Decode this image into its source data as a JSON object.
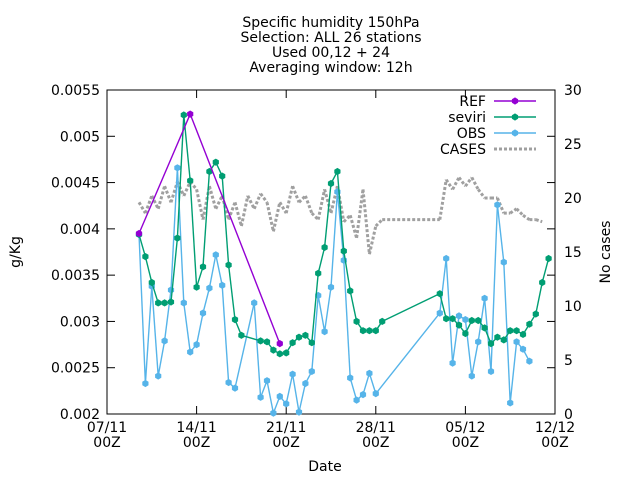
{
  "chart_data": {
    "type": "line",
    "title_lines": [
      "Specific humidity 150hPa",
      "Selection: ALL      26 stations",
      "Used 00,12 + 24",
      "Averaging window: 12h"
    ],
    "xlabel": "Date",
    "ylabel": "g/Kg",
    "y2label": "No cases",
    "xlim": [
      "2011-11-07T00",
      "2011-12-12T00"
    ],
    "ylim": [
      0.002,
      0.0055
    ],
    "y2lim": [
      0,
      30
    ],
    "x_ticks": [
      {
        "date": "2011-11-07T00",
        "line1": "07/11",
        "line2": "00Z"
      },
      {
        "date": "2011-11-14T00",
        "line1": "14/11",
        "line2": "00Z"
      },
      {
        "date": "2011-11-21T00",
        "line1": "21/11",
        "line2": "00Z"
      },
      {
        "date": "2011-11-28T00",
        "line1": "28/11",
        "line2": "00Z"
      },
      {
        "date": "2011-12-05T00",
        "line1": "05/12",
        "line2": "00Z"
      },
      {
        "date": "2011-12-12T00",
        "line1": "12/12",
        "line2": "00Z"
      }
    ],
    "y_ticks": [
      "0.002",
      "0.0025",
      "0.003",
      "0.0035",
      "0.004",
      "0.0045",
      "0.005",
      "0.0055"
    ],
    "y2_ticks": [
      "0",
      "5",
      "10",
      "15",
      "20",
      "25",
      "30"
    ],
    "legend_position": "top-right",
    "colors": {
      "REF": "#9400d3",
      "seviri": "#009e73",
      "OBS": "#56b4e9",
      "CASES": "#a0a0a0"
    },
    "series": [
      {
        "name": "REF",
        "axis": "y1",
        "style": "line-points",
        "points": [
          [
            "2011-11-09T12",
            0.00395
          ],
          [
            "2011-11-13T12",
            0.00524
          ],
          [
            "2011-11-20T12",
            0.00276
          ]
        ]
      },
      {
        "name": "seviri",
        "axis": "y1",
        "style": "line-points",
        "points": [
          [
            "2011-11-09T12",
            0.00394
          ],
          [
            "2011-11-10T00",
            0.0037
          ],
          [
            "2011-11-10T12",
            0.00342
          ],
          [
            "2011-11-11T00",
            0.0032
          ],
          [
            "2011-11-11T12",
            0.0032
          ],
          [
            "2011-11-12T00",
            0.00321
          ],
          [
            "2011-11-12T12",
            0.0039
          ],
          [
            "2011-11-13T00",
            0.00523
          ],
          [
            "2011-11-13T12",
            0.00452
          ],
          [
            "2011-11-14T00",
            0.00337
          ],
          [
            "2011-11-14T12",
            0.00359
          ],
          [
            "2011-11-15T00",
            0.00462
          ],
          [
            "2011-11-15T12",
            0.00472
          ],
          [
            "2011-11-16T00",
            0.00457
          ],
          [
            "2011-11-16T12",
            0.00361
          ],
          [
            "2011-11-17T00",
            0.00302
          ],
          [
            "2011-11-17T12",
            0.00285
          ],
          [
            "2011-11-19T00",
            0.00279
          ],
          [
            "2011-11-19T12",
            0.00278
          ],
          [
            "2011-11-20T00",
            0.00269
          ],
          [
            "2011-11-20T12",
            0.00265
          ],
          [
            "2011-11-21T00",
            0.00266
          ],
          [
            "2011-11-21T12",
            0.00277
          ],
          [
            "2011-11-22T00",
            0.00283
          ],
          [
            "2011-11-22T12",
            0.00285
          ],
          [
            "2011-11-23T00",
            0.00277
          ],
          [
            "2011-11-23T12",
            0.00352
          ],
          [
            "2011-11-24T00",
            0.0038
          ],
          [
            "2011-11-24T12",
            0.00449
          ],
          [
            "2011-11-25T00",
            0.00462
          ],
          [
            "2011-11-25T12",
            0.00376
          ],
          [
            "2011-11-26T00",
            0.00333
          ],
          [
            "2011-11-26T12",
            0.003
          ],
          [
            "2011-11-27T00",
            0.0029
          ],
          [
            "2011-11-27T12",
            0.0029
          ],
          [
            "2011-11-28T00",
            0.0029
          ],
          [
            "2011-11-28T12",
            0.003
          ],
          [
            "2011-12-03T00",
            0.0033
          ],
          [
            "2011-12-03T12",
            0.00303
          ],
          [
            "2011-12-04T00",
            0.00303
          ],
          [
            "2011-12-04T12",
            0.00296
          ],
          [
            "2011-12-05T00",
            0.00287
          ],
          [
            "2011-12-05T12",
            0.00301
          ],
          [
            "2011-12-06T00",
            0.00301
          ],
          [
            "2011-12-06T12",
            0.00293
          ],
          [
            "2011-12-07T00",
            0.00276
          ],
          [
            "2011-12-07T12",
            0.00283
          ],
          [
            "2011-12-08T00",
            0.0028
          ],
          [
            "2011-12-08T12",
            0.0029
          ],
          [
            "2011-12-09T00",
            0.0029
          ],
          [
            "2011-12-09T12",
            0.00286
          ],
          [
            "2011-12-10T00",
            0.00297
          ],
          [
            "2011-12-10T12",
            0.00308
          ],
          [
            "2011-12-11T00",
            0.00342
          ],
          [
            "2011-12-11T12",
            0.00368
          ]
        ]
      },
      {
        "name": "OBS",
        "axis": "y1",
        "style": "line-points",
        "points": [
          [
            "2011-11-09T12",
            0.00394
          ],
          [
            "2011-11-10T00",
            0.00233
          ],
          [
            "2011-11-10T12",
            0.00338
          ],
          [
            "2011-11-11T00",
            0.00241
          ],
          [
            "2011-11-11T12",
            0.00279
          ],
          [
            "2011-11-12T00",
            0.00334
          ],
          [
            "2011-11-12T12",
            0.00466
          ],
          [
            "2011-11-13T00",
            0.0032
          ],
          [
            "2011-11-13T12",
            0.00267
          ],
          [
            "2011-11-14T00",
            0.00275
          ],
          [
            "2011-11-14T12",
            0.00309
          ],
          [
            "2011-11-15T00",
            0.00336
          ],
          [
            "2011-11-15T12",
            0.00372
          ],
          [
            "2011-11-16T00",
            0.00339
          ],
          [
            "2011-11-16T12",
            0.00234
          ],
          [
            "2011-11-17T00",
            0.00228
          ],
          [
            "2011-11-18T12",
            0.0032
          ],
          [
            "2011-11-19T00",
            0.00218
          ],
          [
            "2011-11-19T12",
            0.00236
          ],
          [
            "2011-11-20T00",
            0.00201
          ],
          [
            "2011-11-20T12",
            0.00219
          ],
          [
            "2011-11-21T00",
            0.00211
          ],
          [
            "2011-11-21T12",
            0.00243
          ],
          [
            "2011-11-22T00",
            0.00202
          ],
          [
            "2011-11-22T12",
            0.00233
          ],
          [
            "2011-11-23T00",
            0.00246
          ],
          [
            "2011-11-23T12",
            0.00328
          ],
          [
            "2011-11-24T00",
            0.00289
          ],
          [
            "2011-11-24T12",
            0.00337
          ],
          [
            "2011-11-25T00",
            0.0044
          ],
          [
            "2011-11-25T12",
            0.00366
          ],
          [
            "2011-11-26T00",
            0.00239
          ],
          [
            "2011-11-26T12",
            0.00215
          ],
          [
            "2011-11-27T00",
            0.00221
          ],
          [
            "2011-11-27T12",
            0.00244
          ],
          [
            "2011-11-28T00",
            0.00222
          ],
          [
            "2011-12-03T00",
            0.00309
          ],
          [
            "2011-12-03T12",
            0.00368
          ],
          [
            "2011-12-04T00",
            0.00255
          ],
          [
            "2011-12-04T12",
            0.00306
          ],
          [
            "2011-12-05T00",
            0.00302
          ],
          [
            "2011-12-05T12",
            0.00241
          ],
          [
            "2011-12-06T00",
            0.00278
          ],
          [
            "2011-12-06T12",
            0.00325
          ],
          [
            "2011-12-07T00",
            0.00246
          ],
          [
            "2011-12-07T12",
            0.00426
          ],
          [
            "2011-12-08T00",
            0.00364
          ],
          [
            "2011-12-08T12",
            0.00212
          ],
          [
            "2011-12-09T00",
            0.00278
          ],
          [
            "2011-12-09T12",
            0.0027
          ],
          [
            "2011-12-10T00",
            0.00257
          ]
        ]
      },
      {
        "name": "CASES",
        "axis": "y2",
        "style": "dashed-line",
        "points": [
          [
            "2011-11-09T12",
            19.6
          ],
          [
            "2011-11-10T00",
            18.6
          ],
          [
            "2011-11-10T12",
            20.2
          ],
          [
            "2011-11-11T00",
            19.0
          ],
          [
            "2011-11-11T12",
            21.1
          ],
          [
            "2011-11-12T00",
            19.6
          ],
          [
            "2011-11-12T12",
            21.5
          ],
          [
            "2011-11-13T00",
            20.2
          ],
          [
            "2011-11-13T12",
            21.5
          ],
          [
            "2011-11-14T00",
            20.8
          ],
          [
            "2011-11-14T12",
            18.0
          ],
          [
            "2011-11-15T00",
            21.1
          ],
          [
            "2011-11-15T12",
            19.0
          ],
          [
            "2011-11-16T00",
            20.2
          ],
          [
            "2011-11-16T12",
            18.0
          ],
          [
            "2011-11-17T00",
            19.6
          ],
          [
            "2011-11-17T12",
            17.4
          ],
          [
            "2011-11-18T00",
            20.2
          ],
          [
            "2011-11-18T12",
            19.0
          ],
          [
            "2011-11-19T00",
            20.4
          ],
          [
            "2011-11-19T12",
            19.6
          ],
          [
            "2011-11-20T00",
            16.9
          ],
          [
            "2011-11-20T12",
            19.6
          ],
          [
            "2011-11-21T00",
            18.6
          ],
          [
            "2011-11-21T12",
            21.1
          ],
          [
            "2011-11-22T00",
            19.6
          ],
          [
            "2011-11-22T12",
            20.2
          ],
          [
            "2011-11-23T00",
            18.6
          ],
          [
            "2011-11-23T12",
            18.0
          ],
          [
            "2011-11-24T00",
            20.8
          ],
          [
            "2011-11-24T12",
            18.6
          ],
          [
            "2011-11-25T00",
            21.1
          ],
          [
            "2011-11-25T12",
            17.8
          ],
          [
            "2011-11-26T00",
            18.4
          ],
          [
            "2011-11-26T12",
            16.3
          ],
          [
            "2011-11-27T00",
            20.8
          ],
          [
            "2011-11-27T12",
            14.8
          ],
          [
            "2011-11-28T00",
            17.4
          ],
          [
            "2011-11-28T12",
            18.0
          ],
          [
            "2011-12-03T00",
            18.0
          ],
          [
            "2011-12-03T12",
            21.7
          ],
          [
            "2011-12-04T00",
            20.8
          ],
          [
            "2011-12-04T12",
            21.9
          ],
          [
            "2011-12-05T00",
            21.1
          ],
          [
            "2011-12-05T12",
            21.9
          ],
          [
            "2011-12-06T00",
            20.8
          ],
          [
            "2011-12-06T12",
            20.0
          ],
          [
            "2011-12-07T00",
            20.0
          ],
          [
            "2011-12-07T12",
            20.0
          ],
          [
            "2011-12-08T00",
            18.6
          ],
          [
            "2011-12-08T12",
            18.6
          ],
          [
            "2011-12-09T00",
            19.0
          ],
          [
            "2011-12-09T12",
            18.4
          ],
          [
            "2011-12-10T00",
            18.0
          ],
          [
            "2011-12-10T12",
            18.0
          ],
          [
            "2011-12-11T00",
            17.8
          ]
        ]
      }
    ]
  }
}
